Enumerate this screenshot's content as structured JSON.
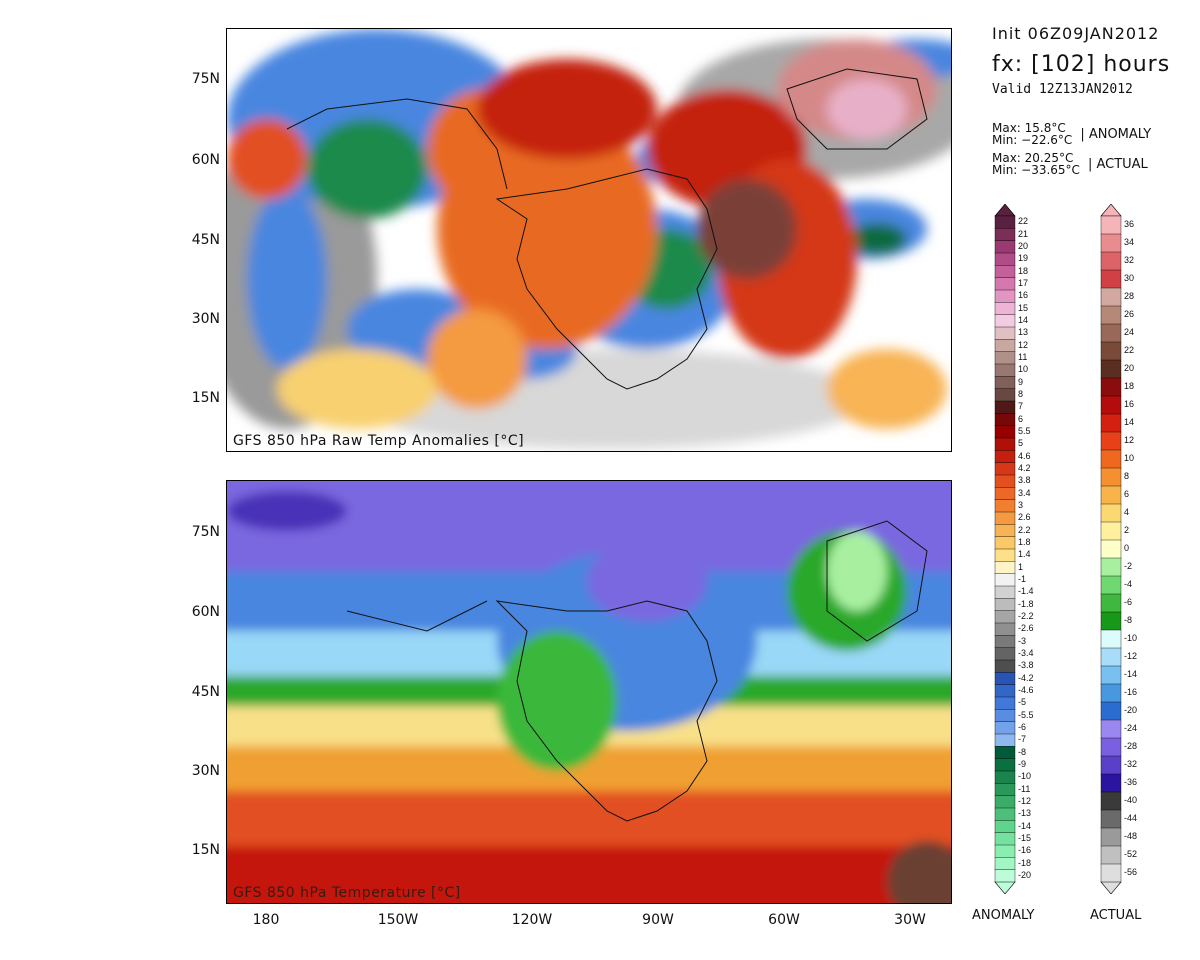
{
  "header": {
    "init": "Init 06Z09JAN2012",
    "fx": "fx: [102] hours",
    "valid": "Valid 12Z13JAN2012"
  },
  "stats": {
    "anomaly": {
      "max": "Max:  15.8°C",
      "min": "Min: −22.6°C",
      "tag": "| ANOMALY"
    },
    "actual": {
      "max": "Max: 20.25°C",
      "min": "Min: −33.65°C",
      "tag": "| ACTUAL"
    }
  },
  "maps": {
    "top": {
      "title": "GFS 850 hPa Raw Temp Anomalies [°C]"
    },
    "bottom": {
      "title": "GFS 850 hPa Temperature [°C]"
    }
  },
  "axes": {
    "lat": [
      "75N",
      "60N",
      "45N",
      "30N",
      "15N"
    ],
    "lon": [
      "180",
      "150W",
      "120W",
      "90W",
      "60W",
      "30W"
    ]
  },
  "colorbars": {
    "anomaly": {
      "footer": "ANOMALY",
      "labels": [
        "22",
        "21",
        "20",
        "19",
        "18",
        "17",
        "16",
        "15",
        "14",
        "13",
        "12",
        "11",
        "10",
        "9",
        "8",
        "7",
        "6",
        "5.5",
        "5",
        "4.6",
        "4.2",
        "3.8",
        "3.4",
        "3",
        "2.6",
        "2.2",
        "1.8",
        "1.4",
        "1",
        "-1",
        "-1.4",
        "-1.8",
        "-2.2",
        "-2.6",
        "-3",
        "-3.4",
        "-3.8",
        "-4.2",
        "-4.6",
        "-5",
        "-5.5",
        "-6",
        "-7",
        "-8",
        "-9",
        "-10",
        "-11",
        "-12",
        "-13",
        "-14",
        "-15",
        "-16",
        "-18",
        "-20"
      ],
      "colors": [
        "#5a2040",
        "#7a2e58",
        "#9a3a72",
        "#b04c88",
        "#c4609a",
        "#d478ae",
        "#e294c2",
        "#eeb4d6",
        "#f4cce2",
        "#e0c0c0",
        "#c8a8a0",
        "#b09088",
        "#987870",
        "#806058",
        "#684840",
        "#501818",
        "#780808",
        "#960000",
        "#b01008",
        "#c42010",
        "#d43818",
        "#e25020",
        "#ec6828",
        "#f08030",
        "#f49a40",
        "#f8b454",
        "#fbc868",
        "#fde088",
        "#fff4c8",
        "#f2f2f2",
        "#d2d2d2",
        "#bcbcbc",
        "#a6a6a6",
        "#909090",
        "#7a7a7a",
        "#646464",
        "#4e4e4e",
        "#2a54b4",
        "#3466c8",
        "#4278d8",
        "#5a8ce2",
        "#74a2ea",
        "#90b8f0",
        "#005c38",
        "#0a7040",
        "#1a844c",
        "#2a985a",
        "#3aac68",
        "#4cc07a",
        "#60d48c",
        "#74e29e",
        "#8aeeb0",
        "#a2f6c4",
        "#bcfcd8"
      ]
    },
    "actual": {
      "footer": "ACTUAL",
      "labels": [
        "36",
        "34",
        "32",
        "30",
        "28",
        "26",
        "24",
        "22",
        "20",
        "18",
        "16",
        "14",
        "12",
        "10",
        "8",
        "6",
        "4",
        "2",
        "0",
        "-2",
        "-4",
        "-6",
        "-8",
        "-10",
        "-12",
        "-14",
        "-16",
        "-20",
        "-24",
        "-28",
        "-32",
        "-36",
        "-40",
        "-44",
        "-48",
        "-52",
        "-56"
      ],
      "colors": [
        "#f4b4b8",
        "#e88c90",
        "#dc6468",
        "#d04044",
        "#d2a8a0",
        "#b68878",
        "#9a6858",
        "#7a4a38",
        "#5a2e20",
        "#8a0c0c",
        "#b40c0c",
        "#d42010",
        "#e84018",
        "#f06820",
        "#f49030",
        "#f8b448",
        "#fcd870",
        "#fff0a0",
        "#ffffc8",
        "#a8f0a0",
        "#70d870",
        "#40b840",
        "#189818",
        "#dcfcfc",
        "#a8dcf8",
        "#78c0f0",
        "#4898e0",
        "#2a6cd0",
        "#9a88f0",
        "#7a60e0",
        "#5a40c8",
        "#2a14a0",
        "#3a3a3a",
        "#6a6a6a",
        "#9a9a9a",
        "#c0c0c0",
        "#dedede"
      ]
    }
  }
}
